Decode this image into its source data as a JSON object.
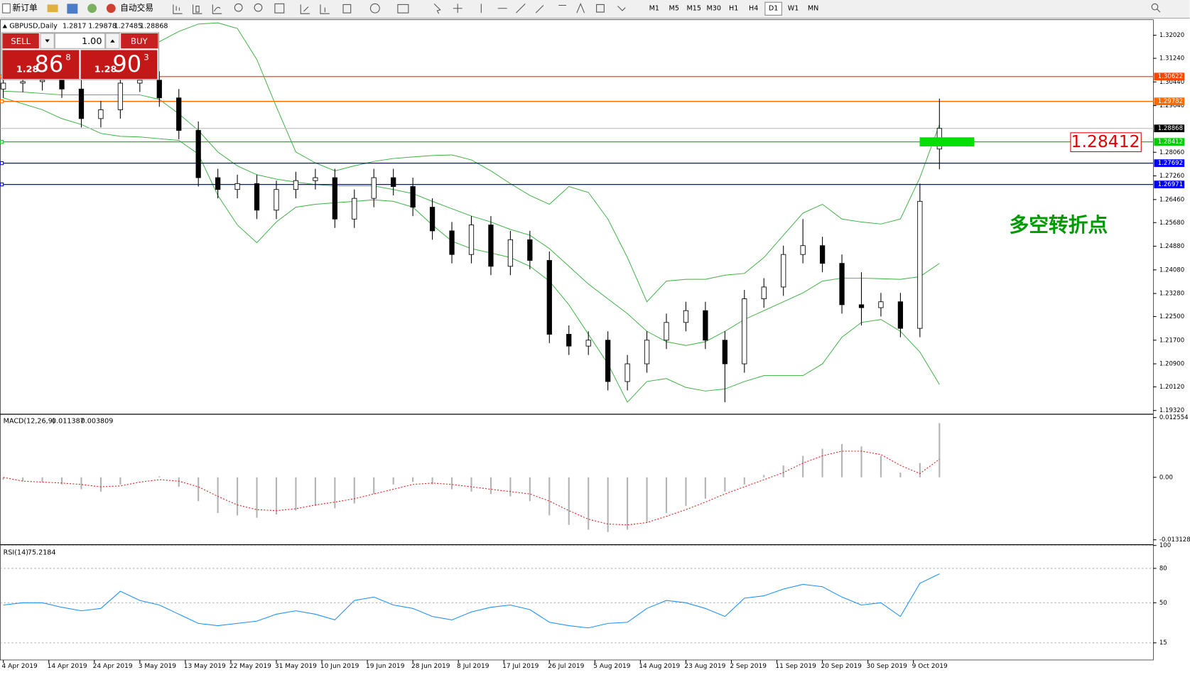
{
  "toolbar": {
    "new_order": "新订单",
    "auto_trading": "自动交易",
    "timeframes": [
      "M1",
      "M5",
      "M15",
      "M30",
      "H1",
      "H4",
      "D1",
      "W1",
      "MN"
    ],
    "active_timeframe": 6
  },
  "trade_panel": {
    "sell": "SELL",
    "buy": "BUY",
    "volume": "1.00",
    "sell_price": {
      "big": "1.28",
      "pips": "86",
      "point": "8"
    },
    "buy_price": {
      "big": "1.28",
      "pips": "90",
      "point": "3"
    }
  },
  "chart_data": [
    {
      "type": "candlestick",
      "title": "GBPUSD,Daily",
      "x": [
        0,
        3,
        6,
        9,
        12,
        15,
        18,
        21,
        24,
        27,
        30,
        33,
        36,
        39,
        42,
        45,
        48,
        51,
        54,
        57,
        60,
        63,
        66,
        69,
        72,
        75,
        78,
        81,
        84,
        87,
        90,
        93,
        96,
        99,
        102,
        105,
        108,
        111,
        114,
        117,
        120,
        123,
        126,
        129,
        132,
        135,
        138,
        141,
        144
      ],
      "open": [
        1.302,
        1.304,
        1.3045,
        1.305,
        1.302,
        1.292,
        1.295,
        1.304,
        1.305,
        1.299,
        1.288,
        1.272,
        1.268,
        1.27,
        1.261,
        1.268,
        1.271,
        1.272,
        1.258,
        1.265,
        1.272,
        1.269,
        1.262,
        1.254,
        1.246,
        1.256,
        1.242,
        1.251,
        1.244,
        1.219,
        1.215,
        1.217,
        1.203,
        1.209,
        1.217,
        1.223,
        1.227,
        1.217,
        1.209,
        1.231,
        1.235,
        1.246,
        1.249,
        1.243,
        1.229,
        1.228,
        1.23,
        1.221,
        1.2817
      ],
      "high": [
        1.307,
        1.3075,
        1.308,
        1.308,
        1.305,
        1.298,
        1.307,
        1.308,
        1.308,
        1.302,
        1.291,
        1.275,
        1.273,
        1.273,
        1.271,
        1.274,
        1.275,
        1.275,
        1.268,
        1.275,
        1.275,
        1.272,
        1.265,
        1.257,
        1.259,
        1.259,
        1.254,
        1.254,
        1.247,
        1.222,
        1.22,
        1.22,
        1.212,
        1.22,
        1.226,
        1.23,
        1.23,
        1.22,
        1.234,
        1.238,
        1.249,
        1.258,
        1.252,
        1.246,
        1.24,
        1.233,
        1.233,
        1.27,
        1.29878
      ],
      "low": [
        1.299,
        1.301,
        1.3015,
        1.299,
        1.289,
        1.289,
        1.292,
        1.301,
        1.296,
        1.285,
        1.269,
        1.265,
        1.265,
        1.258,
        1.258,
        1.265,
        1.268,
        1.255,
        1.255,
        1.262,
        1.266,
        1.259,
        1.251,
        1.243,
        1.243,
        1.239,
        1.239,
        1.241,
        1.216,
        1.212,
        1.212,
        1.2,
        1.2,
        1.206,
        1.214,
        1.22,
        1.214,
        1.196,
        1.206,
        1.228,
        1.232,
        1.243,
        1.24,
        1.226,
        1.222,
        1.225,
        1.218,
        1.218,
        1.27485
      ],
      "close": [
        1.304,
        1.3045,
        1.305,
        1.302,
        1.292,
        1.295,
        1.304,
        1.305,
        1.299,
        1.288,
        1.272,
        1.268,
        1.27,
        1.261,
        1.268,
        1.271,
        1.272,
        1.258,
        1.265,
        1.272,
        1.269,
        1.262,
        1.254,
        1.246,
        1.256,
        1.242,
        1.251,
        1.244,
        1.219,
        1.215,
        1.217,
        1.203,
        1.209,
        1.217,
        1.223,
        1.227,
        1.217,
        1.209,
        1.231,
        1.235,
        1.246,
        1.249,
        1.243,
        1.229,
        1.228,
        1.23,
        1.221,
        1.264,
        1.28868
      ],
      "bands": {
        "color": "#3cb043",
        "upper": [
          1.317,
          1.317,
          1.3168,
          1.3165,
          1.3165,
          1.316,
          1.316,
          1.3154,
          1.318,
          1.3215,
          1.324,
          1.3244,
          1.3225,
          1.312,
          1.296,
          1.2807,
          1.277,
          1.2743,
          1.276,
          1.2775,
          1.2785,
          1.279,
          1.2795,
          1.2797,
          1.278,
          1.2743,
          1.27,
          1.266,
          1.263,
          1.269,
          1.267,
          1.258,
          1.245,
          1.23,
          1.237,
          1.2376,
          1.2376,
          1.239,
          1.2396,
          1.245,
          1.2525,
          1.26,
          1.263,
          1.258,
          1.257,
          1.2563,
          1.258,
          1.272,
          1.29
        ],
        "middle": [
          1.3013,
          1.301,
          1.3005,
          1.3,
          1.3,
          1.3,
          1.3,
          1.3,
          1.2985,
          1.2936,
          1.288,
          1.2807,
          1.276,
          1.273,
          1.2715,
          1.2705,
          1.2697,
          1.2692,
          1.2692,
          1.2692,
          1.268,
          1.2666,
          1.264,
          1.2615,
          1.259,
          1.257,
          1.2545,
          1.2525,
          1.248,
          1.242,
          1.236,
          1.231,
          1.226,
          1.22,
          1.2165,
          1.2152,
          1.2165,
          1.22,
          1.224,
          1.227,
          1.23,
          1.233,
          1.237,
          1.238,
          1.238,
          1.2378,
          1.2376,
          1.2385,
          1.243
        ],
        "lower": [
          1.299,
          1.297,
          1.295,
          1.292,
          1.29,
          1.287,
          1.286,
          1.2858,
          1.2852,
          1.2846,
          1.28,
          1.266,
          1.256,
          1.25,
          1.257,
          1.262,
          1.263,
          1.2635,
          1.264,
          1.2645,
          1.264,
          1.262,
          1.256,
          1.2505,
          1.248,
          1.2465,
          1.245,
          1.242,
          1.237,
          1.229,
          1.219,
          1.209,
          1.196,
          1.203,
          1.204,
          1.201,
          1.1998,
          1.2005,
          1.203,
          1.205,
          1.205,
          1.205,
          1.209,
          1.218,
          1.223,
          1.224,
          1.22,
          1.213,
          1.202
        ]
      },
      "levels": [
        {
          "value": 1.30622,
          "color": "#ff4500"
        },
        {
          "value": 1.29782,
          "color": "#ff6a00"
        },
        {
          "value": 1.28412,
          "color": "#00cc00"
        },
        {
          "value": 1.27692,
          "color": "#0000ff"
        },
        {
          "value": 1.26971,
          "color": "#0000ff"
        }
      ],
      "highlight_level": 2,
      "annotation": {
        "text": "多空转折点",
        "color": "#009900"
      },
      "xlim": [
        -0.467,
        176.9
      ],
      "xticks": [
        {
          "value": 0,
          "label": "4 Apr 2019"
        },
        {
          "value": 7,
          "label": "14 Apr 2019"
        },
        {
          "value": 14,
          "label": "24 Apr 2019"
        },
        {
          "value": 21,
          "label": "3 May 2019"
        },
        {
          "value": 28,
          "label": "13 May 2019"
        },
        {
          "value": 35,
          "label": "22 May 2019"
        },
        {
          "value": 42,
          "label": "31 May 2019"
        },
        {
          "value": 49,
          "label": "10 Jun 2019"
        },
        {
          "value": 56,
          "label": "19 Jun 2019"
        },
        {
          "value": 63,
          "label": "28 Jun 2019"
        },
        {
          "value": 70,
          "label": "8 Jul 2019"
        },
        {
          "value": 77,
          "label": "17 Jul 2019"
        },
        {
          "value": 84,
          "label": "26 Jul 2019"
        },
        {
          "value": 91,
          "label": "5 Aug 2019"
        },
        {
          "value": 98,
          "label": "14 Aug 2019"
        },
        {
          "value": 105,
          "label": "23 Aug 2019"
        },
        {
          "value": 112,
          "label": "2 Sep 2019"
        },
        {
          "value": 119,
          "label": "11 Sep 2019"
        },
        {
          "value": 126,
          "label": "20 Sep 2019"
        },
        {
          "value": 133,
          "label": "30 Sep 2019"
        },
        {
          "value": 140,
          "label": "9 Oct 2019"
        }
      ],
      "ylim": [
        1.1922,
        1.3252
      ],
      "yticks": [
        {
          "value": 1.3202,
          "label": "1.32020"
        },
        {
          "value": 1.3124,
          "label": "1.31240"
        },
        {
          "value": 1.3044,
          "label": "1.30440"
        },
        {
          "value": 1.2964,
          "label": "1.29640"
        },
        {
          "value": 1.2806,
          "label": "1.28060"
        },
        {
          "value": 1.2726,
          "label": "1.27260"
        },
        {
          "value": 1.2646,
          "label": "1.26460"
        },
        {
          "value": 1.2568,
          "label": "1.25680"
        },
        {
          "value": 1.2488,
          "label": "1.24880"
        },
        {
          "value": 1.2408,
          "label": "1.24080"
        },
        {
          "value": 1.2328,
          "label": "1.23280"
        },
        {
          "value": 1.225,
          "label": "1.22500"
        },
        {
          "value": 1.217,
          "label": "1.21700"
        },
        {
          "value": 1.209,
          "label": "1.20900"
        },
        {
          "value": 1.2012,
          "label": "1.20120"
        },
        {
          "value": 1.1932,
          "label": "1.19320"
        }
      ]
    },
    {
      "type": "macd",
      "title": "MACD(12,26,9)",
      "histogram": {
        "color": "#b4b4b4",
        "values": [
          -0.0005,
          -0.0008,
          -0.001,
          -0.0015,
          -0.0025,
          -0.003,
          -0.0015,
          0.0,
          0.0002,
          -0.002,
          -0.005,
          -0.0075,
          -0.008,
          -0.0085,
          -0.0078,
          -0.007,
          -0.006,
          -0.0065,
          -0.0055,
          -0.0035,
          -0.0015,
          -0.001,
          -0.0015,
          -0.0025,
          -0.003,
          -0.0035,
          -0.004,
          -0.005,
          -0.008,
          -0.01,
          -0.011,
          -0.0115,
          -0.011,
          -0.0095,
          -0.0075,
          -0.006,
          -0.0045,
          -0.003,
          -0.0015,
          0.0005,
          0.0025,
          0.0045,
          0.006,
          0.007,
          0.0065,
          0.0045,
          0.001,
          0.003,
          0.011387
        ]
      },
      "signal": {
        "color": "#e02020",
        "values": [
          0.0,
          -0.0008,
          -0.001,
          -0.0012,
          -0.0015,
          -0.002,
          -0.0018,
          -0.001,
          -0.0005,
          -0.0008,
          -0.002,
          -0.004,
          -0.0058,
          -0.0068,
          -0.007,
          -0.0066,
          -0.0058,
          -0.0052,
          -0.0045,
          -0.0035,
          -0.0025,
          -0.0015,
          -0.0012,
          -0.0015,
          -0.002,
          -0.0025,
          -0.003,
          -0.0035,
          -0.005,
          -0.007,
          -0.0088,
          -0.0098,
          -0.01,
          -0.0095,
          -0.0082,
          -0.0068,
          -0.0052,
          -0.0035,
          -0.002,
          -0.0005,
          0.001,
          0.003,
          0.0045,
          0.0055,
          0.0055,
          0.0048,
          0.0025,
          0.0008,
          0.003809
        ]
      },
      "ylim": [
        -0.014,
        0.0131
      ],
      "yticks": [
        0.012554,
        {
          "value": 0,
          "label": "0.00"
        },
        -0.013128
      ]
    },
    {
      "type": "line",
      "title": "RSI(14)",
      "color": "#1e90ff",
      "values": [
        48,
        50,
        50,
        46,
        43,
        45,
        60,
        52,
        48,
        40,
        32,
        30,
        32,
        34,
        40,
        43,
        40,
        35,
        52,
        55,
        48,
        45,
        38,
        35,
        42,
        46,
        48,
        44,
        33,
        30,
        28,
        32,
        33,
        45,
        52,
        50,
        45,
        38,
        54,
        56,
        62,
        66,
        64,
        55,
        48,
        50,
        38,
        67,
        75.2184
      ],
      "ylim": [
        0,
        100
      ],
      "yticks": [
        100,
        80,
        50,
        15
      ]
    }
  ]
}
